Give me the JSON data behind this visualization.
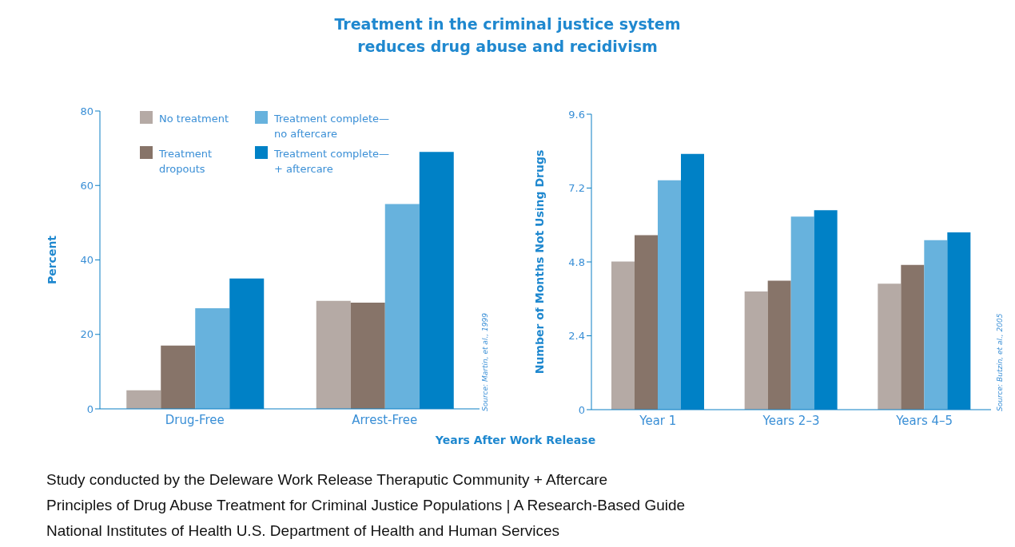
{
  "chart_data": [
    {
      "type": "bar",
      "title": "Treatment in the criminal justice system\nreduces drug abuse and recidivism",
      "ylabel": "Percent",
      "categories": [
        "Drug-Free",
        "Arrest-Free"
      ],
      "series": [
        {
          "name": "No treatment",
          "color": "#b5aaa5",
          "values": [
            5,
            29
          ]
        },
        {
          "name": "Treatment dropouts",
          "color": "#877469",
          "values": [
            17,
            28.5
          ]
        },
        {
          "name": "Treatment complete—no aftercare",
          "color": "#67b2dd",
          "values": [
            27,
            55
          ]
        },
        {
          "name": "Treatment complete—+ aftercare",
          "color": "#0081c6",
          "values": [
            35,
            69
          ]
        }
      ],
      "ylim": [
        0,
        80
      ],
      "yticks": [
        0,
        20,
        40,
        60,
        80
      ],
      "grid": false,
      "legend": "top left",
      "annotations": [
        "Source: Martin, et al., 1999",
        "Study conducted by the Deleware Work Release Theraputic Community + Aftercare",
        "Principles of Drug Abuse Treatment for Criminal Justice Populations | A Research-Based Guide",
        "National Institutes of Health U.S. Department of Health and Human Services"
      ]
    },
    {
      "type": "bar",
      "xlabel": "Years After Work Release",
      "ylabel": "Number of Months Not Using Drugs",
      "categories": [
        "Year 1",
        "Years 2–3",
        "Years 4–5"
      ],
      "series": [
        {
          "color": "#b5aaa5",
          "values": [
            4.81,
            3.84,
            4.09
          ]
        },
        {
          "color": "#877469",
          "values": [
            5.67,
            4.19,
            4.7
          ]
        },
        {
          "color": "#67b2dd",
          "values": [
            7.45,
            6.27,
            5.51
          ]
        },
        {
          "color": "#0081c6",
          "values": [
            8.31,
            6.48,
            5.76
          ]
        }
      ],
      "ylim": [
        0,
        9.6
      ],
      "yticks": [
        0,
        2.4,
        4.8,
        7.2,
        9.6
      ],
      "grid": false,
      "annotations": [
        "Source: Butzin, et al., 2005"
      ]
    }
  ]
}
